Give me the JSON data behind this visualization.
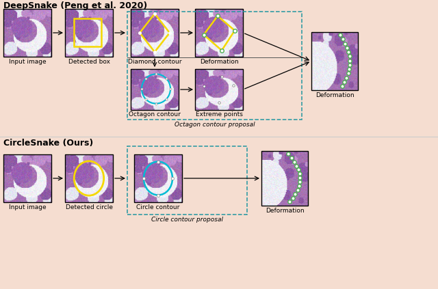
{
  "background_color": "#f5ddd0",
  "title_deepsnake": "DeepSnake (Peng et al. 2020)",
  "title_circlesnake": "CircleSnake (Ours)",
  "dashed_box_color": "#2196a0",
  "arrow_color": "#000000",
  "yellow_color": "#f5d800",
  "cyan_color": "#00bcd4",
  "green_color": "#4caf50",
  "white_color": "#ffffff",
  "font_size_title": 9,
  "font_size_label": 6.5,
  "label_input": "Input image",
  "label_det_box": "Detected box",
  "label_diamond": "Diamond contour",
  "label_deform": "Deformation",
  "label_octagon": "Octagon contour",
  "label_extreme": "Extreme points",
  "label_oct_proposal": "Octagon contour proposal",
  "label_det_circle": "Detected circle",
  "label_circle_contour": "Circle contour",
  "label_circle_proposal": "Circle contour proposal"
}
